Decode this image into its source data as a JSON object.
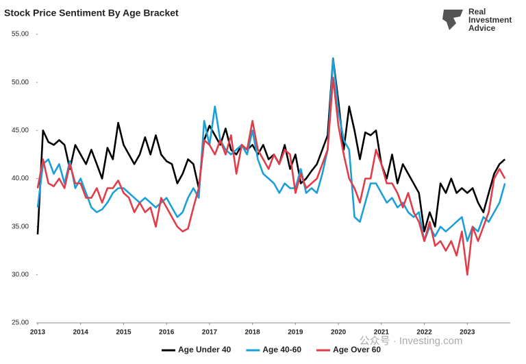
{
  "chart_data": {
    "type": "line",
    "title": "Stock Price Sentiment By Age Bracket",
    "brand": [
      "Real",
      "Investment",
      "Advice"
    ],
    "watermark": "公众号 · Investing.com",
    "x": [
      2013,
      2013.125,
      2013.25,
      2013.375,
      2013.5,
      2013.625,
      2013.75,
      2013.875,
      2014,
      2014.125,
      2014.25,
      2014.375,
      2014.5,
      2014.625,
      2014.75,
      2014.875,
      2015,
      2015.125,
      2015.25,
      2015.375,
      2015.5,
      2015.625,
      2015.75,
      2015.875,
      2016,
      2016.125,
      2016.25,
      2016.375,
      2016.5,
      2016.625,
      2016.75,
      2016.875,
      2017,
      2017.125,
      2017.25,
      2017.375,
      2017.5,
      2017.625,
      2017.75,
      2017.875,
      2018,
      2018.125,
      2018.25,
      2018.375,
      2018.5,
      2018.625,
      2018.75,
      2018.875,
      2019,
      2019.125,
      2019.25,
      2019.375,
      2019.5,
      2019.625,
      2019.75,
      2019.875,
      2020,
      2020.125,
      2020.25,
      2020.375,
      2020.5,
      2020.625,
      2020.75,
      2020.875,
      2021,
      2021.125,
      2021.25,
      2021.375,
      2021.5,
      2021.625,
      2021.75,
      2021.875,
      2022,
      2022.125,
      2022.25,
      2022.375,
      2022.5,
      2022.625,
      2022.75,
      2022.875,
      2023,
      2023.125,
      2023.25,
      2023.375,
      2023.5,
      2023.625,
      2023.75,
      2023.875
    ],
    "series": [
      {
        "name": "Age Under 40",
        "color": "#000000",
        "values": [
          34.2,
          45,
          43.8,
          43.5,
          44,
          43.5,
          41,
          43.5,
          42.5,
          41.5,
          43,
          41.5,
          40,
          43.2,
          42,
          45.8,
          43.5,
          42.5,
          41.5,
          42.5,
          44.3,
          42.5,
          44.5,
          42.5,
          41.8,
          41.5,
          39.5,
          40.5,
          42,
          41.5,
          39,
          44,
          45.5,
          44.5,
          43.5,
          45.2,
          43,
          42.5,
          43.5,
          43,
          43.5,
          42.5,
          43.5,
          42,
          42.5,
          41.5,
          43.5,
          41,
          42.5,
          39.5,
          40,
          40.8,
          41.5,
          43,
          44.5,
          52.5,
          48,
          43,
          47.5,
          45,
          42,
          44.8,
          44.5,
          45,
          41.5,
          40,
          42.5,
          39.5,
          41.5,
          40.5,
          39.5,
          38.5,
          34.5,
          36.5,
          35,
          39.5,
          38.5,
          40,
          38.5,
          39,
          38.5,
          39,
          37.5,
          36.5,
          38.5,
          40.5,
          41.5,
          42
        ]
      },
      {
        "name": "Age 40-60",
        "color": "#1a9fd6",
        "values": [
          37,
          41.5,
          42,
          40.5,
          41.5,
          39.5,
          41.8,
          39,
          40,
          38.5,
          37,
          36.5,
          36.8,
          37.5,
          38.5,
          39,
          39,
          38.5,
          38,
          37.5,
          38,
          37.5,
          37,
          37.5,
          38,
          37,
          36,
          36.5,
          38,
          39,
          38,
          46,
          43.5,
          47.5,
          44,
          43,
          42.5,
          43,
          43.5,
          42.5,
          45,
          42,
          40.5,
          40,
          39.5,
          38.5,
          39.5,
          39,
          39,
          41,
          38.5,
          39,
          38.5,
          40.5,
          43,
          52.5,
          47,
          44,
          43,
          36,
          35.5,
          37.5,
          39.5,
          39.5,
          38.5,
          37.5,
          38,
          37,
          37.5,
          36.5,
          36,
          36.5,
          33.5,
          35,
          34,
          35,
          34.5,
          35,
          35.5,
          36,
          33.5,
          35,
          34.5,
          36,
          35.5,
          36.5,
          37.5,
          39.5
        ]
      },
      {
        "name": "Age Over 60",
        "color": "#e03c4a",
        "values": [
          39,
          42,
          39.5,
          39.2,
          40,
          39,
          41.5,
          39.5,
          39.5,
          38,
          38,
          39,
          37.5,
          39,
          39,
          39.8,
          38.5,
          38,
          36.5,
          37.5,
          36.5,
          37,
          35,
          38,
          37,
          36,
          35,
          34.5,
          34.8,
          37,
          39,
          44,
          43.5,
          42.5,
          44,
          42.5,
          44.5,
          40.5,
          43.5,
          43,
          46,
          43,
          42,
          41,
          42.5,
          41.5,
          43,
          42.5,
          38.5,
          40.5,
          39,
          39.5,
          40,
          41.5,
          43,
          50.5,
          45.5,
          42.5,
          40,
          39,
          37.5,
          40,
          40,
          43,
          41.5,
          39.5,
          39.5,
          38.5,
          37,
          38.5,
          36.5,
          35.5,
          33.5,
          35.5,
          33,
          33.5,
          32.5,
          33.5,
          32,
          34.5,
          30,
          35,
          33.5,
          35,
          36.5,
          40,
          41,
          40
        ]
      }
    ],
    "xlim": [
      2013,
      2024
    ],
    "xticks": [
      2013,
      2014,
      2015,
      2016,
      2017,
      2018,
      2019,
      2020,
      2021,
      2022,
      2023
    ],
    "ylim": [
      25,
      55
    ],
    "yticks": [
      {
        "value": 25,
        "label": "25.00"
      },
      {
        "value": 30,
        "label": "30.00"
      },
      {
        "value": 35,
        "label": "35.00"
      },
      {
        "value": 40,
        "label": "40.00"
      },
      {
        "value": 45,
        "label": "45.00"
      },
      {
        "value": 50,
        "label": "50.00"
      },
      {
        "value": 55,
        "label": "55.00"
      }
    ],
    "grid": false,
    "legend": "bottom"
  }
}
